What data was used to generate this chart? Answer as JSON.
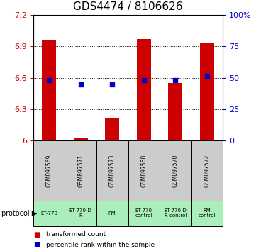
{
  "title": "GDS4474 / 8106626",
  "samples": [
    "GSM897569",
    "GSM897571",
    "GSM897573",
    "GSM897568",
    "GSM897570",
    "GSM897572"
  ],
  "bar_bottom": 6.0,
  "bar_tops": [
    6.96,
    6.02,
    6.21,
    6.97,
    6.55,
    6.93
  ],
  "percentile_values": [
    6.575,
    6.535,
    6.535,
    6.575,
    6.575,
    6.62
  ],
  "ylim_left": [
    6.0,
    7.2
  ],
  "ylim_right": [
    0,
    100
  ],
  "yticks_left": [
    6.0,
    6.3,
    6.6,
    6.9,
    7.2
  ],
  "yticks_right": [
    0,
    25,
    50,
    75,
    100
  ],
  "ytick_labels_left": [
    "6",
    "6.3",
    "6.6",
    "6.9",
    "7.2"
  ],
  "ytick_labels_right": [
    "0",
    "25",
    "50",
    "75",
    "100%"
  ],
  "bar_color": "#cc0000",
  "square_color": "#0000cc",
  "protocols": [
    "ET-770",
    "ET-770-D\nR",
    "RM",
    "ET-770\ncontrol",
    "ET-770-D\nR control",
    "RM\ncontrol"
  ],
  "protocol_bg": "#aaeebb",
  "sample_bg": "#cccccc",
  "grid_color": "#999999",
  "title_fontsize": 11,
  "axis_label_color_left": "#cc0000",
  "axis_label_color_right": "#0000cc",
  "legend_square_red": "■",
  "legend_square_blue": "■",
  "legend_text_red": "transformed count",
  "legend_text_blue": "percentile rank within the sample"
}
